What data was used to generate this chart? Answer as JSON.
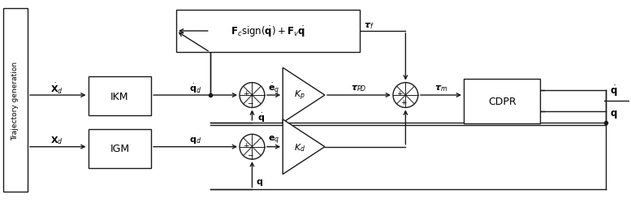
{
  "fig_width": 7.77,
  "fig_height": 2.51,
  "dpi": 100,
  "bg_color": "#ffffff",
  "line_color": "#1a1a1a",
  "labels": {
    "Xd_dot": "$\\dot{\\mathbf{X}}_d$",
    "qd_dot": "$\\dot{\\mathbf{q}}_d$",
    "Xd": "$\\mathbf{X}_d$",
    "qd": "$\\mathbf{q}_d$",
    "eq_dot": "$\\dot{\\mathbf{e}}_q$",
    "eq": "$\\mathbf{e}_q$",
    "q_dot_fb": "$\\dot{\\mathbf{q}}$",
    "q_fb": "$\\mathbf{q}$",
    "tau_PD": "$\\boldsymbol{\\tau}_{PD}$",
    "tau_m": "$\\boldsymbol{\\tau}_m$",
    "tau_f": "$\\boldsymbol{\\tau}_f$",
    "q_dot_out": "$\\dot{\\mathbf{q}}$",
    "q_out": "$\\mathbf{q}$",
    "ff_text": "$\\mathbf{F}_c\\mathrm{sign}(\\dot{\\mathbf{q}}) + \\mathbf{F}_v\\dot{\\mathbf{q}}$",
    "Kp": "$K_p$",
    "Kd": "$K_d$",
    "IKM": "IKM",
    "IGM": "IGM",
    "CDPR": "CDPR",
    "traj": "Trajectory generation"
  }
}
